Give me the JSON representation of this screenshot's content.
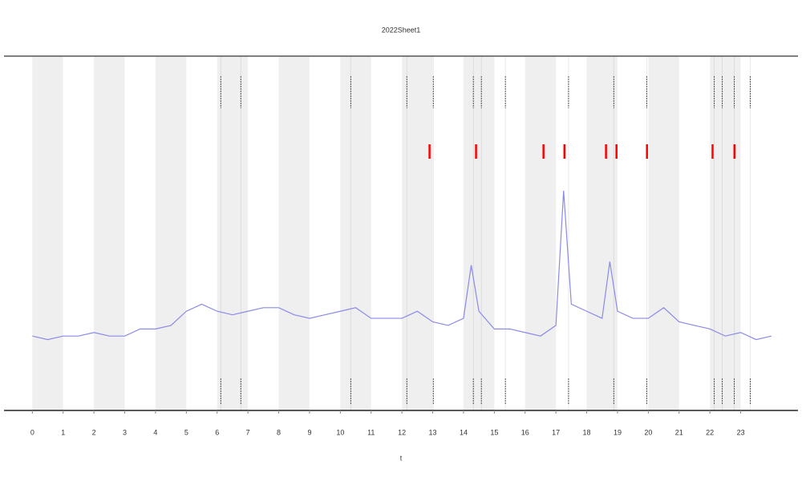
{
  "chart_data": {
    "type": "line",
    "title": "2022Sheet1",
    "x_label": "t",
    "xlim": [
      -0.92,
      24.86
    ],
    "ylim": [
      0,
      100
    ],
    "xticks": [
      0,
      1,
      2,
      3,
      4,
      5,
      6,
      7,
      8,
      9,
      10,
      11,
      12,
      13,
      14,
      15,
      16,
      17,
      18,
      19,
      20,
      21,
      22,
      23
    ],
    "shaded": [
      [
        0,
        1
      ],
      [
        2,
        3
      ],
      [
        4,
        5
      ],
      [
        6,
        7
      ],
      [
        8,
        9
      ],
      [
        10,
        11
      ],
      [
        12,
        13
      ],
      [
        14,
        15
      ],
      [
        16,
        17
      ],
      [
        18,
        19
      ],
      [
        20,
        21
      ],
      [
        22,
        23
      ]
    ],
    "shade_color": "#efefef",
    "events": [
      6.12,
      6.77,
      10.34,
      12.16,
      13.02,
      14.32,
      14.58,
      15.36,
      17.41,
      18.88,
      19.95,
      22.14,
      22.4,
      22.79,
      23.31
    ],
    "event_color": "#555555",
    "alerts": [
      12.89,
      14.4,
      16.59,
      17.27,
      18.62,
      18.96,
      19.95,
      22.08,
      22.79
    ],
    "alert_color": "#ff0000",
    "series": [
      {
        "name": "value",
        "color": "#8a8ae8",
        "x": [
          0,
          0.5,
          1,
          1.5,
          2,
          2.5,
          3,
          3.5,
          4,
          4.5,
          5,
          5.5,
          6,
          6.5,
          7,
          7.5,
          8,
          8.5,
          9,
          9.5,
          10,
          10.5,
          11,
          11.5,
          12,
          12.5,
          13,
          13.5,
          14,
          14.25,
          14.5,
          15,
          15.5,
          16,
          16.5,
          17,
          17.25,
          17.5,
          18,
          18.5,
          18.75,
          19,
          19.5,
          20,
          20.5,
          21,
          21.5,
          22,
          22.5,
          23,
          23.5,
          24
        ],
        "values": [
          21,
          20,
          21,
          21,
          22,
          21,
          21,
          23,
          23,
          24,
          28,
          30,
          28,
          27,
          28,
          29,
          29,
          27,
          26,
          27,
          28,
          29,
          26,
          26,
          26,
          28,
          25,
          24,
          26,
          41,
          28,
          23,
          23,
          22,
          21,
          24,
          62,
          30,
          28,
          26,
          42,
          28,
          26,
          26,
          29,
          25,
          24,
          23,
          21,
          22,
          20,
          21
        ]
      }
    ]
  }
}
